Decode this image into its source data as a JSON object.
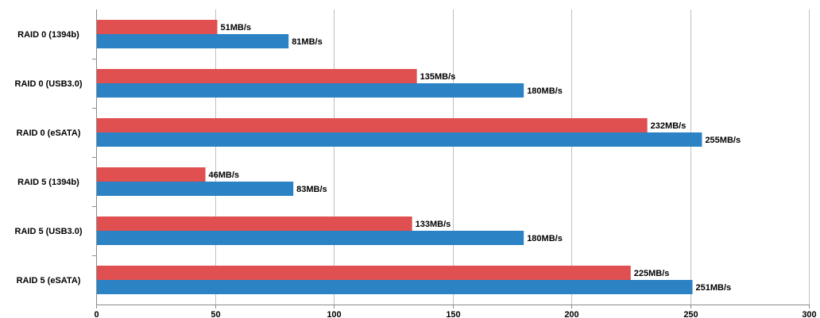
{
  "chart_data": {
    "type": "bar",
    "orientation": "horizontal",
    "categories": [
      "RAID 0 (1394b)",
      "RAID 0 (USB3.0)",
      "RAID 0 (eSATA)",
      "RAID 5 (1394b)",
      "RAID 5 (USB3.0)",
      "RAID 5 (eSATA)"
    ],
    "series": [
      {
        "color": "#e05050",
        "values": [
          51,
          135,
          232,
          46,
          133,
          225
        ],
        "labels": [
          "51MB/s",
          "135MB/s",
          "232MB/s",
          "46MB/s",
          "133MB/s",
          "225MB/s"
        ]
      },
      {
        "color": "#2b82c4",
        "values": [
          81,
          180,
          255,
          83,
          180,
          251
        ],
        "labels": [
          "81MB/s",
          "180MB/s",
          "255MB/s",
          "83MB/s",
          "180MB/s",
          "251MB/s"
        ]
      }
    ],
    "xlim": [
      0,
      300
    ],
    "xticks": [
      0,
      50,
      100,
      150,
      200,
      250,
      300
    ],
    "grid": "vertical",
    "legend": "none"
  }
}
